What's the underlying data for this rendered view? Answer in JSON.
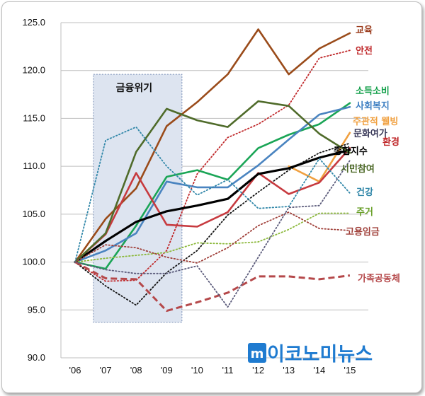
{
  "chart_data": {
    "type": "line",
    "title": "",
    "xlabel": "",
    "ylabel": "",
    "ylim": [
      90,
      125
    ],
    "yticks": [
      "125.0",
      "120.0",
      "115.0",
      "110.0",
      "105.0",
      "100.0",
      "95.0",
      "90.0"
    ],
    "ytick_values": [
      125,
      120,
      115,
      110,
      105,
      100,
      95,
      90
    ],
    "categories": [
      "'06",
      "'07",
      "'08",
      "'09",
      "'10",
      "'11",
      "'12",
      "'13",
      "'14",
      "'15"
    ],
    "grid": "horizontal",
    "shaded_region": {
      "label": "금융위기",
      "x_start": 0.6,
      "x_end": 3.5,
      "y_from": 93.7,
      "y_to": 119.6
    },
    "series": [
      {
        "name": "교육",
        "color": "#9a4b1a",
        "style": "solid",
        "values": [
          100,
          104.5,
          107.7,
          114.2,
          116.7,
          119.6,
          124.3,
          119.6,
          122.3,
          123.9
        ]
      },
      {
        "name": "안전",
        "color": "#c0292b",
        "style": "dotted",
        "values": [
          100,
          98.0,
          98.1,
          101.2,
          109.2,
          113.0,
          114.4,
          116.4,
          121.3,
          122.1
        ]
      },
      {
        "name": "소득소비",
        "color": "#1aa556",
        "style": "solid",
        "values": [
          100,
          99.3,
          103.8,
          108.9,
          109.6,
          108.6,
          111.9,
          113.3,
          114.4,
          116.6
        ]
      },
      {
        "name": "사회복지",
        "color": "#4a84c0",
        "style": "solid",
        "values": [
          100,
          101.2,
          103.0,
          108.4,
          107.8,
          107.8,
          110.1,
          112.8,
          115.4,
          116.2
        ]
      },
      {
        "name": "주관적 웰빙",
        "color": "#f0a040",
        "style": "solid",
        "values": [
          null,
          null,
          null,
          null,
          null,
          null,
          null,
          110.0,
          108.4,
          113.5
        ]
      },
      {
        "name": "문화여가",
        "color": "#111111",
        "style": "dotted",
        "values": [
          100,
          97.5,
          95.5,
          98.9,
          101.2,
          104.9,
          107.3,
          109.6,
          111.4,
          112.4
        ]
      },
      {
        "name": "환경",
        "color": "#c73a3f",
        "style": "solid",
        "values": [
          100,
          102.9,
          109.3,
          103.9,
          103.7,
          105.2,
          109.3,
          107.1,
          108.3,
          111.9
        ]
      },
      {
        "name": "종합지수",
        "color": "#000000",
        "style": "solid-bold",
        "values": [
          100,
          102.2,
          104.2,
          105.3,
          105.9,
          106.6,
          109.2,
          109.8,
          110.9,
          111.7
        ]
      },
      {
        "name": "시민참여",
        "color": "#4f6b2a",
        "style": "solid",
        "values": [
          100,
          103.0,
          111.5,
          116.0,
          114.8,
          114.1,
          116.8,
          116.3,
          113.4,
          111.4
        ]
      },
      {
        "name": "건강",
        "color": "#2f86a8",
        "style": "dotted",
        "values": [
          100,
          112.7,
          114.1,
          110.0,
          107.0,
          108.6,
          105.6,
          105.8,
          110.8,
          107.2
        ]
      },
      {
        "name": "주거",
        "color": "#8bb83a",
        "style": "dotted",
        "values": [
          100,
          100.4,
          100.7,
          101.0,
          102.0,
          101.9,
          102.1,
          103.4,
          105.1,
          105.1
        ]
      },
      {
        "name": "고용임금",
        "color": "#a0403a",
        "style": "dotted",
        "values": [
          100,
          101.8,
          101.5,
          100.5,
          99.9,
          101.5,
          103.8,
          105.2,
          103.5,
          103.3
        ]
      },
      {
        "name": "가족공동체",
        "color": "#b5484a",
        "style": "dashed",
        "values": [
          100,
          98.3,
          98.2,
          94.9,
          95.8,
          96.8,
          98.5,
          98.5,
          98.2,
          98.6
        ]
      },
      {
        "name": "",
        "color": "#5a5a7a",
        "style": "dotted",
        "values": [
          100,
          99.2,
          98.8,
          98.8,
          99.6,
          95.3,
          100.5,
          105.7,
          105.9,
          110.6
        ]
      }
    ]
  },
  "legend_labels": [
    {
      "text": "교육",
      "color": "#9a3a1a"
    },
    {
      "text": "안전",
      "color": "#c0292b"
    },
    {
      "text": "소득소비",
      "color": "#13a04a"
    },
    {
      "text": "사회복지",
      "color": "#3e7fc2"
    },
    {
      "text": "주관적 웰빙",
      "color": "#f0a040"
    },
    {
      "text": "문화여가",
      "color": "#3a3a5a"
    },
    {
      "text": "환경",
      "color": "#c0292b"
    },
    {
      "text": "종합지수",
      "color": "#000000"
    },
    {
      "text": "시민참여",
      "color": "#4f6b2a"
    },
    {
      "text": "건강",
      "color": "#2f86a8"
    },
    {
      "text": "주거",
      "color": "#6aa02a"
    },
    {
      "text": "고용임금",
      "color": "#a0403a"
    },
    {
      "text": "가족공동체",
      "color": "#b5484a"
    }
  ],
  "watermark": {
    "text": "이코노미뉴스",
    "mark": "m"
  }
}
